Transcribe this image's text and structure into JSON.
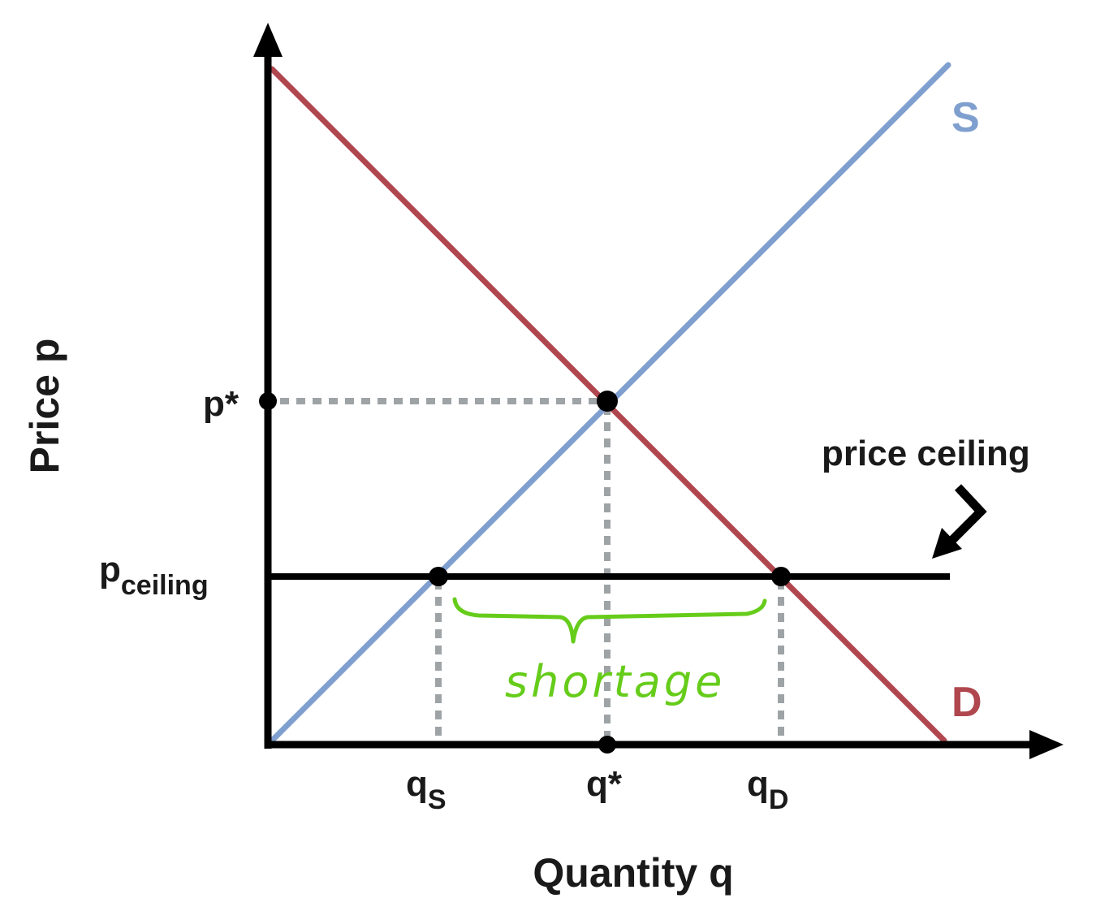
{
  "diagram": {
    "axes": {
      "y_label": "Price p",
      "x_label": "Quantity q"
    },
    "curves": {
      "supply_label": "S",
      "demand_label": "D",
      "supply_color": "#7f9fcf",
      "demand_color": "#b0474f"
    },
    "price_ticks": {
      "equilibrium": "p*",
      "ceiling_main": "p",
      "ceiling_sub": "ceiling"
    },
    "quantity_ticks": {
      "supplied_main": "q",
      "supplied_sub": "S",
      "equilibrium": "q*",
      "demanded_main": "q",
      "demanded_sub": "D"
    },
    "annotations": {
      "ceiling_label": "price ceiling",
      "shortage_label": "shortage",
      "shortage_color": "#66cc1a"
    }
  }
}
